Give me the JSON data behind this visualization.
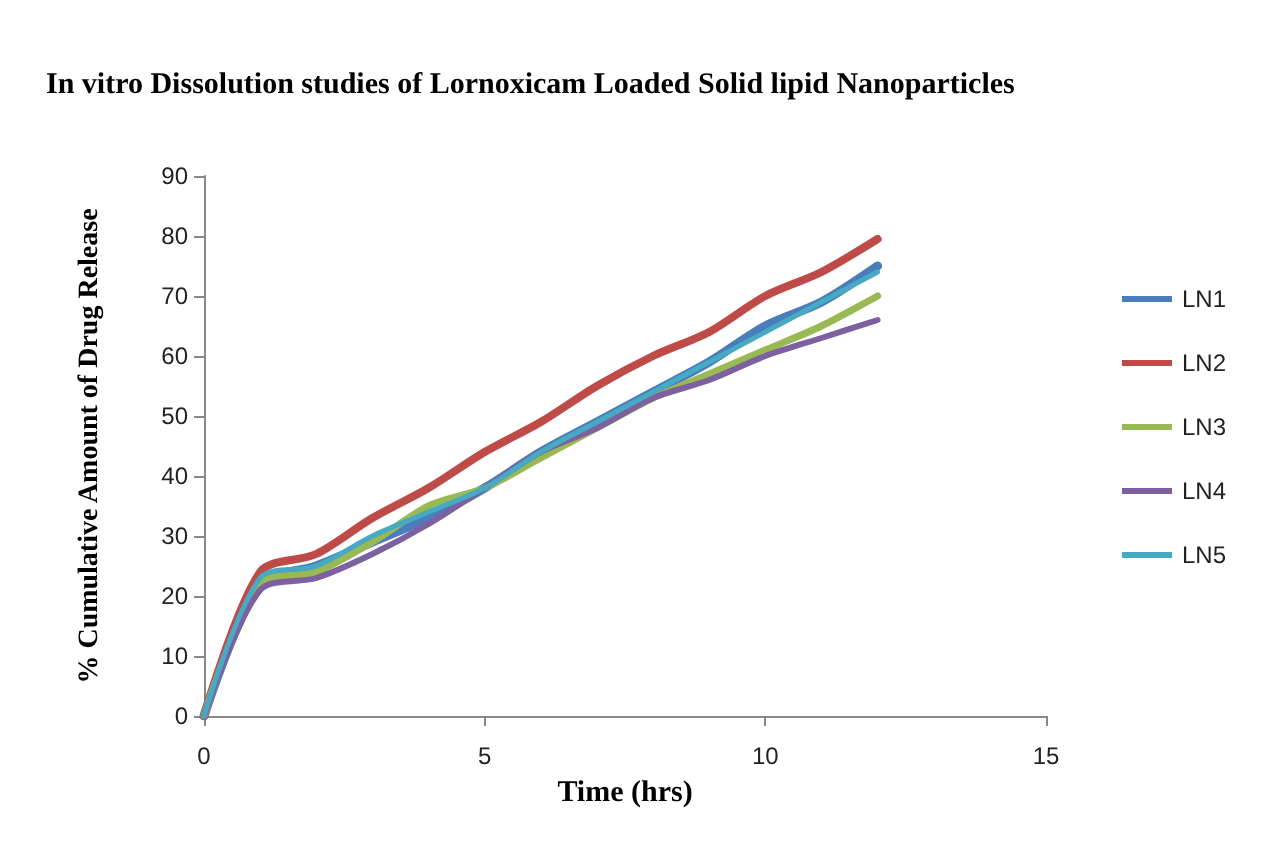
{
  "chart_data": {
    "type": "line",
    "title": "In vitro Dissolution studies of Lornoxicam Loaded Solid lipid Nanoparticles",
    "xlabel": "Time (hrs)",
    "ylabel": "% Cumulative Amount of Drug Release",
    "x": [
      0,
      1,
      2,
      3,
      4,
      5,
      6,
      7,
      8,
      9,
      10,
      11,
      12
    ],
    "series": [
      {
        "name": "LN1",
        "color": "#4a7ebb",
        "values": [
          0,
          22,
          25,
          29,
          33,
          38,
          44,
          49,
          54,
          59,
          65,
          69,
          75
        ]
      },
      {
        "name": "LN2",
        "color": "#be4b48",
        "values": [
          0,
          24,
          27,
          33,
          38,
          44,
          49,
          55,
          60,
          64,
          70,
          74,
          79.5
        ]
      },
      {
        "name": "LN3",
        "color": "#98b954",
        "values": [
          0,
          22,
          24,
          29,
          35,
          38,
          43,
          48,
          53,
          57,
          61,
          65,
          70
        ]
      },
      {
        "name": "LN4",
        "color": "#7d60a0",
        "values": [
          0,
          21,
          23,
          27,
          32,
          38,
          44,
          48,
          53,
          56,
          60,
          63,
          66
        ]
      },
      {
        "name": "LN5",
        "color": "#46aac5",
        "values": [
          0,
          23,
          25,
          30,
          34,
          38,
          44,
          49,
          54,
          59,
          64,
          69,
          74
        ]
      }
    ],
    "xlim": [
      0,
      15
    ],
    "xticks": [
      0,
      5,
      10,
      15
    ],
    "ylim": [
      0,
      90
    ],
    "yticks": [
      0,
      10,
      20,
      30,
      40,
      50,
      60,
      70,
      80,
      90
    ],
    "grid": false,
    "legend": "right",
    "marker": "none",
    "line_style": "solid"
  }
}
